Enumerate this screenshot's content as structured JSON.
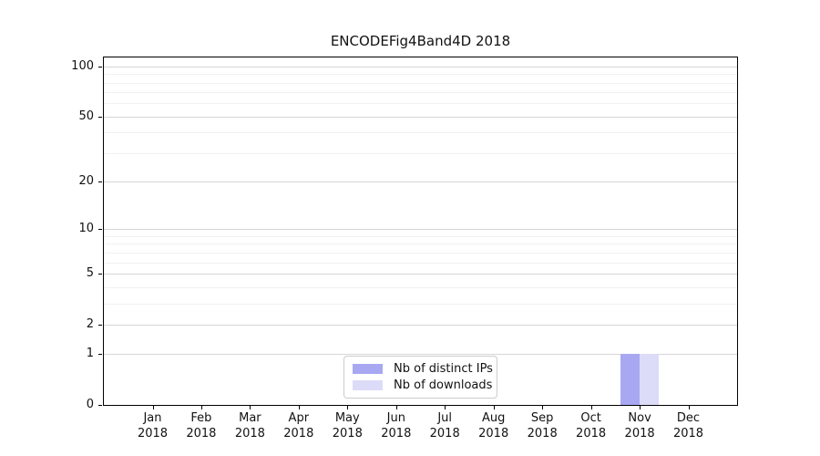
{
  "title": "ENCODEFig4Band4D 2018",
  "legend": {
    "items": [
      {
        "label": "Nb of distinct IPs",
        "color": "#a8a8f2"
      },
      {
        "label": "Nb of downloads",
        "color": "#dcdcf8"
      }
    ]
  },
  "chart_data": {
    "type": "bar",
    "title": "ENCODEFig4Band4D 2018",
    "categories": [
      "Jan 2018",
      "Feb 2018",
      "Mar 2018",
      "Apr 2018",
      "May 2018",
      "Jun 2018",
      "Jul 2018",
      "Aug 2018",
      "Sep 2018",
      "Oct 2018",
      "Nov 2018",
      "Dec 2018"
    ],
    "series": [
      {
        "name": "Nb of distinct IPs",
        "color": "#a8a8f2",
        "values": [
          0,
          0,
          0,
          0,
          0,
          0,
          0,
          0,
          0,
          0,
          1,
          0
        ]
      },
      {
        "name": "Nb of downloads",
        "color": "#dcdcf8",
        "values": [
          0,
          0,
          0,
          0,
          0,
          0,
          0,
          0,
          0,
          0,
          1,
          0
        ]
      }
    ],
    "xlabel": "",
    "ylabel": "",
    "yscale": "log1p",
    "ylim": [
      0,
      112
    ],
    "yticks": [
      0,
      1,
      2,
      5,
      10,
      20,
      50,
      100
    ],
    "minor_yticks": [
      3,
      4,
      6,
      7,
      8,
      9,
      30,
      40,
      60,
      70,
      80,
      90
    ],
    "grid": "horizontal",
    "legend_position": "lower center",
    "bar_width_fraction": 0.4
  }
}
